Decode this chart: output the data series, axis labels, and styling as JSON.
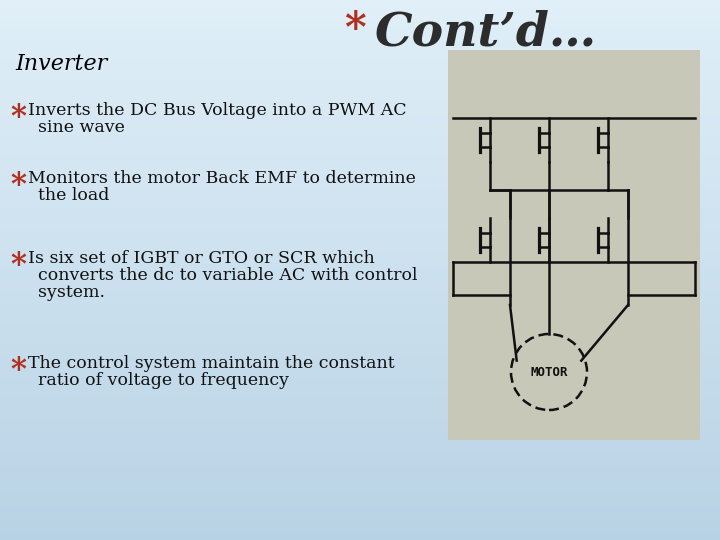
{
  "bg_grad_top": "#c5dce8",
  "bg_grad_bottom": "#ddeef8",
  "title_star": "*",
  "title_text": "Cont’d…",
  "title_star_color": "#b03020",
  "title_text_color": "#2c2c2c",
  "title_star_fontsize": 30,
  "title_text_fontsize": 34,
  "slide_title": "Inverter",
  "slide_title_color": "#000000",
  "slide_title_fontsize": 16,
  "bullet_star_color": "#b03020",
  "bullet_color": "#111111",
  "bullet_fontsize": 12.5,
  "bullet_star_fontsize": 22,
  "bullet_lines": [
    [
      "Inverts the DC Bus Voltage into a PWM AC",
      "sine wave"
    ],
    [
      "Monitors the motor Back EMF to determine",
      "the load"
    ],
    [
      "Is six set of IGBT or GTO or SCR which",
      "converts the dc to variable AC with control",
      "system."
    ],
    [
      "The control system maintain the constant",
      "ratio of voltage to frequency"
    ]
  ],
  "diagram_bg": "#c8c8b8",
  "diagram_line_color": "#111111",
  "motor_label": "MOTOR",
  "motor_label_fontsize": 9
}
